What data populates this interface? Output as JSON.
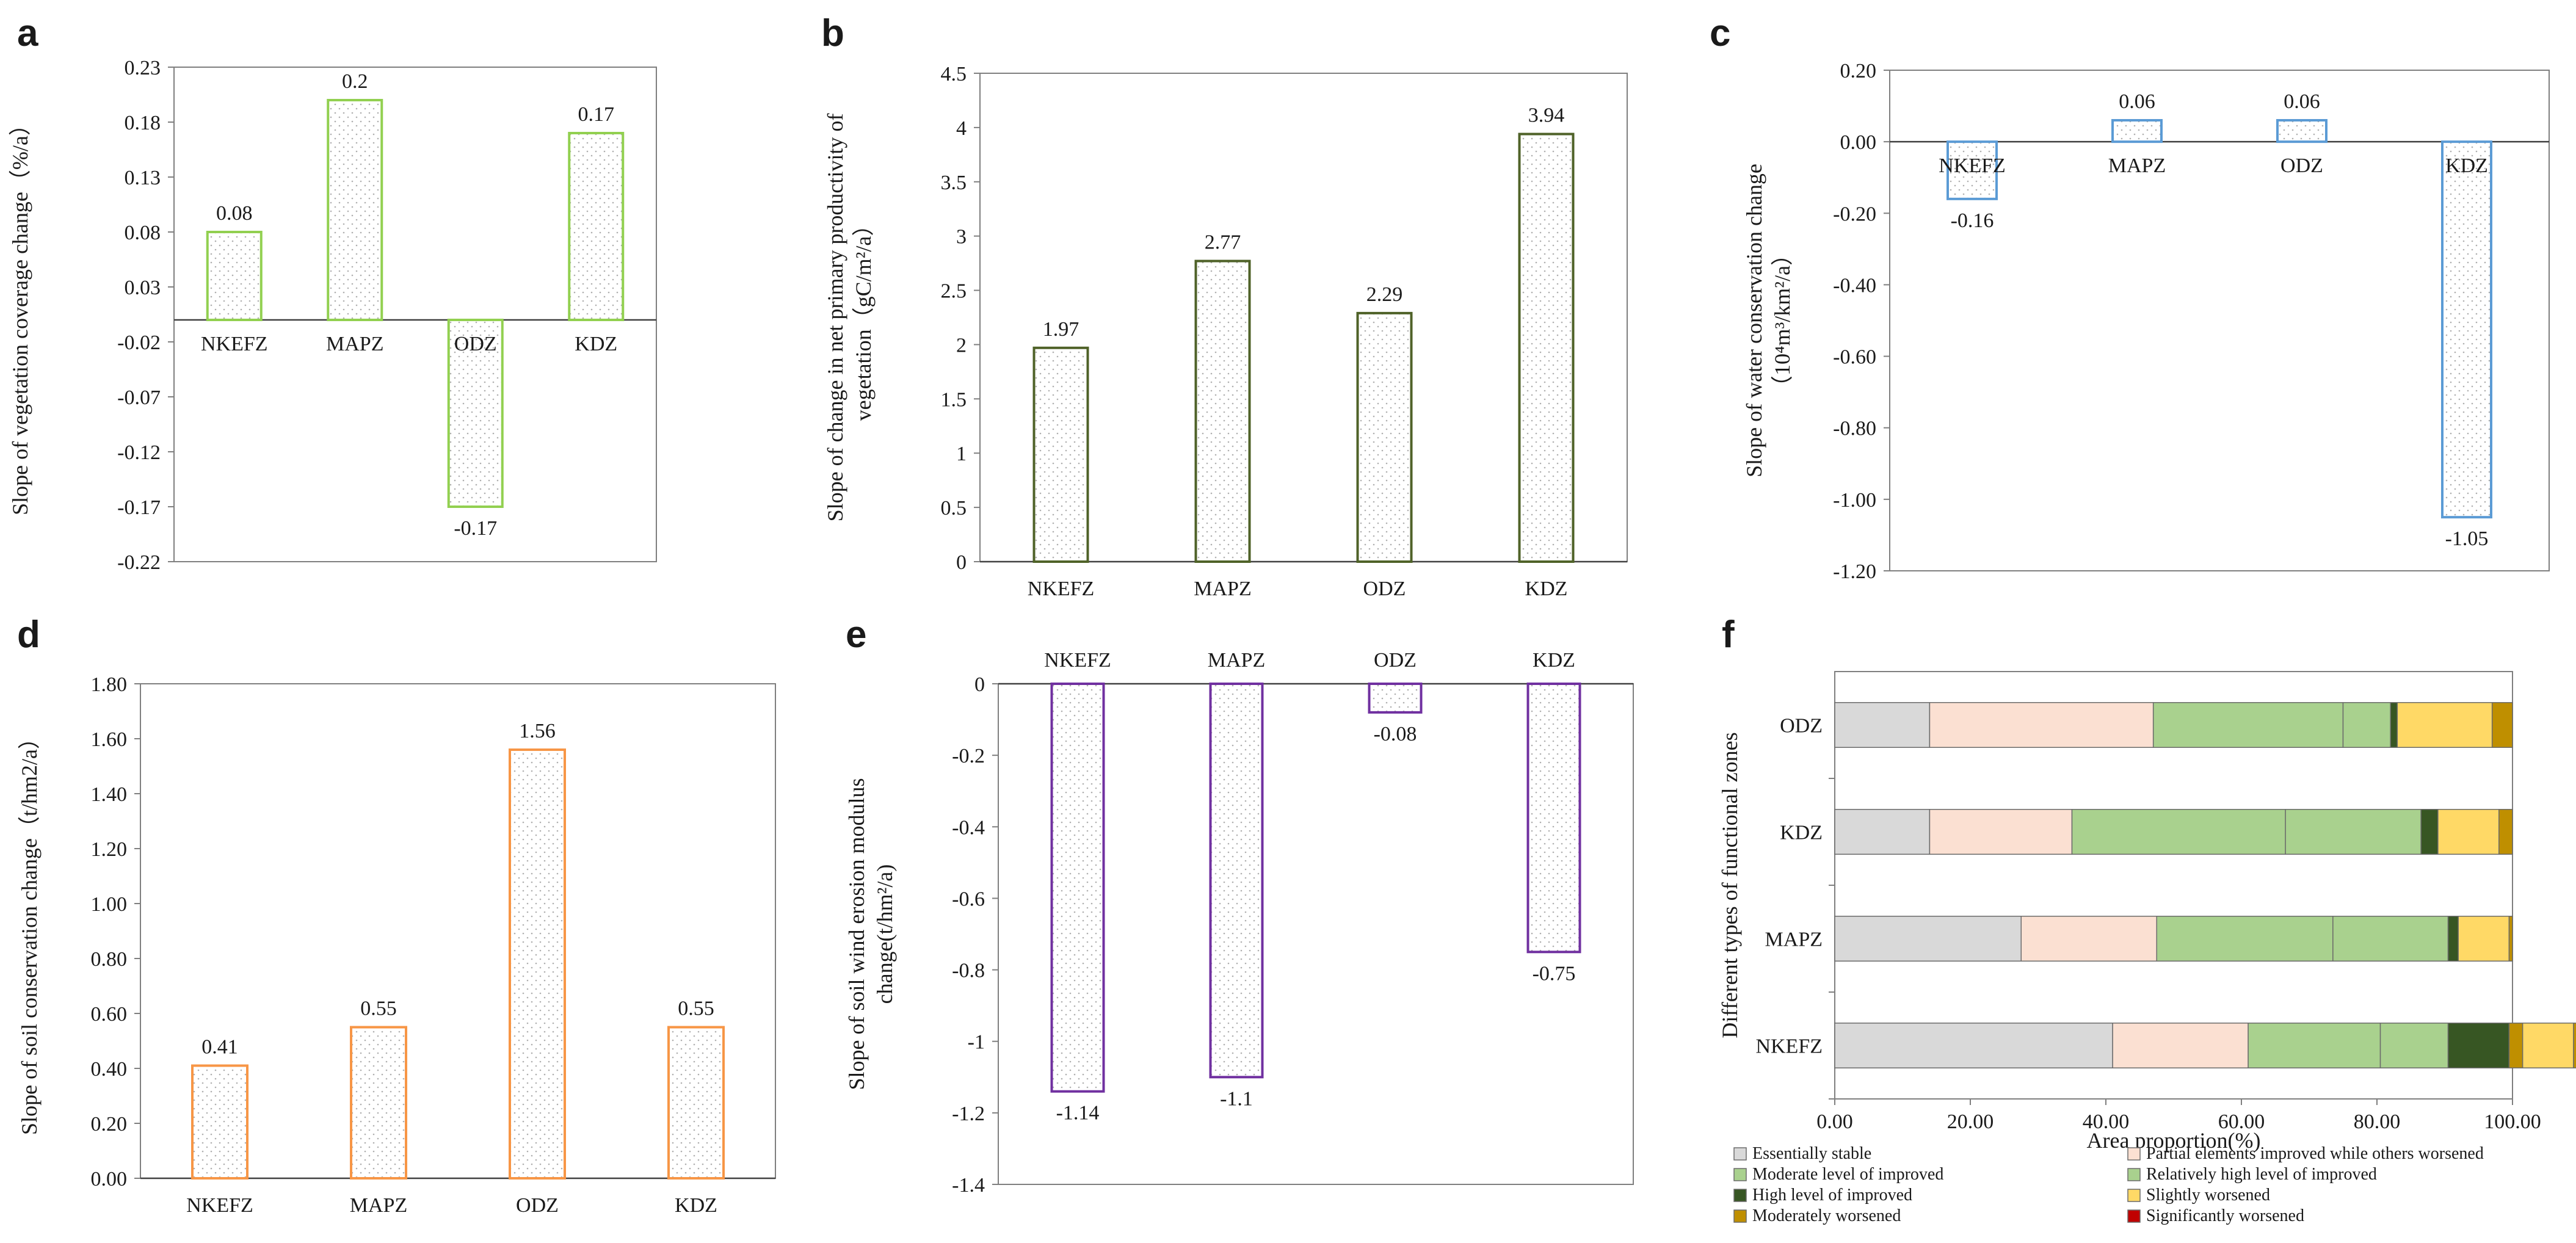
{
  "chart_data": [
    {
      "panel": "a",
      "type": "bar",
      "title": "",
      "ylabel": "Slope of vegetation coverage change（%/a）",
      "xlabel": "",
      "categories": [
        "NKEFZ",
        "MAPZ",
        "ODZ",
        "KDZ"
      ],
      "values": [
        0.08,
        0.2,
        -0.17,
        0.17
      ],
      "value_labels": [
        "0.08",
        "0.2",
        "-0.17",
        "0.17"
      ],
      "ylim": [
        -0.22,
        0.23
      ],
      "yticks": [
        0.23,
        0.18,
        0.13,
        0.08,
        0.03,
        -0.02,
        -0.07,
        -0.12,
        -0.17,
        -0.22
      ],
      "ytick_labels": [
        "0.23",
        "0.18",
        "0.13",
        "0.08",
        "0.03",
        "-0.02",
        "-0.07",
        "-0.12",
        "-0.17",
        "-0.22"
      ],
      "category_position": "on-axis",
      "color": "#92d050"
    },
    {
      "panel": "b",
      "type": "bar",
      "title": "",
      "ylabel_lines": [
        "Slope of change in net primary productivity of",
        "vegetation（gC/m²/a）"
      ],
      "xlabel": "",
      "categories": [
        "NKEFZ",
        "MAPZ",
        "ODZ",
        "KDZ"
      ],
      "values": [
        1.97,
        2.77,
        2.29,
        3.94
      ],
      "value_labels": [
        "1.97",
        "2.77",
        "2.29",
        "3.94"
      ],
      "ylim": [
        0,
        4.5
      ],
      "yticks": [
        0,
        0.5,
        1,
        1.5,
        2,
        2.5,
        3,
        3.5,
        4,
        4.5
      ],
      "ytick_labels": [
        "0",
        "0.5",
        "1",
        "1.5",
        "2",
        "2.5",
        "3",
        "3.5",
        "4",
        "4.5"
      ],
      "category_position": "bottom",
      "color": "#4f6228"
    },
    {
      "panel": "c",
      "type": "bar",
      "title": "",
      "ylabel_lines": [
        "Slope of water conservation change",
        "（10⁴m³/km²/a）"
      ],
      "xlabel": "",
      "categories": [
        "NKEFZ",
        "MAPZ",
        "ODZ",
        "KDZ"
      ],
      "values": [
        -0.16,
        0.06,
        0.06,
        -1.05
      ],
      "value_labels": [
        "-0.16",
        "0.06",
        "0.06",
        "-1.05"
      ],
      "ylim": [
        -1.2,
        0.2
      ],
      "yticks": [
        0.2,
        0.0,
        -0.2,
        -0.4,
        -0.6,
        -0.8,
        -1.0,
        -1.2
      ],
      "ytick_labels": [
        "0.20",
        "0.00",
        "-0.20",
        "-0.40",
        "-0.60",
        "-0.80",
        "-1.00",
        "-1.20"
      ],
      "category_position": "on-axis",
      "color": "#5b9bd5"
    },
    {
      "panel": "d",
      "type": "bar",
      "title": "",
      "ylabel": "Slope of soil conservation change（t/hm2/a）",
      "xlabel": "",
      "categories": [
        "NKEFZ",
        "MAPZ",
        "ODZ",
        "KDZ"
      ],
      "values": [
        0.41,
        0.55,
        1.56,
        0.55
      ],
      "value_labels": [
        "0.41",
        "0.55",
        "1.56",
        "0.55"
      ],
      "ylim": [
        0,
        1.8
      ],
      "yticks": [
        0,
        0.2,
        0.4,
        0.6,
        0.8,
        1.0,
        1.2,
        1.4,
        1.6,
        1.8
      ],
      "ytick_labels": [
        "0.00",
        "0.20",
        "0.40",
        "0.60",
        "0.80",
        "1.00",
        "1.20",
        "1.40",
        "1.60",
        "1.80"
      ],
      "category_position": "bottom",
      "color": "#f79646"
    },
    {
      "panel": "e",
      "type": "bar",
      "title": "",
      "ylabel_lines": [
        "Slope of soil wind erosion modulus",
        "change(t/hm²/a)"
      ],
      "xlabel": "",
      "categories": [
        "NKEFZ",
        "MAPZ",
        "ODZ",
        "KDZ"
      ],
      "values": [
        -1.14,
        -1.1,
        -0.08,
        -0.75
      ],
      "value_labels": [
        "-1.14",
        "-1.1",
        "-0.08",
        "-0.75"
      ],
      "ylim": [
        -1.4,
        0
      ],
      "yticks": [
        0,
        -0.2,
        -0.4,
        -0.6,
        -0.8,
        -1.0,
        -1.2,
        -1.4
      ],
      "ytick_labels": [
        "0",
        "-0.2",
        "-0.4",
        "-0.6",
        "-0.8",
        "-1",
        "-1.2",
        "-1.4"
      ],
      "category_position": "top",
      "color": "#7030a0"
    },
    {
      "panel": "f",
      "type": "bar",
      "orientation": "horizontal-stacked",
      "title": "",
      "ylabel": "Different types of functional zones",
      "xlabel": "Area proportion(%)",
      "categories": [
        "ODZ",
        "KDZ",
        "MAPZ",
        "NKEFZ"
      ],
      "xlim": [
        0,
        100
      ],
      "xticks": [
        0,
        20,
        40,
        60,
        80,
        100
      ],
      "xtick_labels": [
        "0.00",
        "20.00",
        "40.00",
        "60.00",
        "80.00",
        "100.00"
      ],
      "series": [
        {
          "name": "Essentially stable",
          "color": "#d9d9d9",
          "values": [
            14.0,
            14.0,
            27.5,
            41.0
          ]
        },
        {
          "name": "Partial elements improved while others worsened",
          "color": "#fbe0d2",
          "values": [
            33.0,
            21.0,
            20.0,
            20.0
          ]
        },
        {
          "name": "Moderate level of improved",
          "color": "#a9d18e",
          "values": [
            28.0,
            31.5,
            26.0,
            19.5
          ]
        },
        {
          "name": "Relatively high level of improved",
          "color": "#a9d18e",
          "values": [
            7.0,
            20.0,
            17.0,
            10.0
          ]
        },
        {
          "name": "High level of improved",
          "color": "#375623",
          "values": [
            1.0,
            2.5,
            1.5,
            9.0
          ]
        },
        {
          "name": "Moderately worsened",
          "color": "#bf8f00",
          "values": [
            0.0,
            0.0,
            0.0,
            2.0
          ]
        },
        {
          "name": "Slightly worsened",
          "color": "#ffd966",
          "values": [
            14.0,
            9.0,
            7.5,
            7.5
          ]
        },
        {
          "name": "Significantly worsened",
          "color": "#c00000",
          "values": [
            0.0,
            0.0,
            0.0,
            0.0
          ]
        },
        {
          "name": "Moderately worsened",
          "color": "#bf8f00",
          "values": [
            3.0,
            2.0,
            0.5,
            1.0
          ]
        }
      ],
      "legend_entries": [
        {
          "name": "Essentially stable",
          "color": "#d9d9d9"
        },
        {
          "name": "Partial elements improved while others worsened",
          "color": "#fbe0d2"
        },
        {
          "name": "Moderate level of improved",
          "color": "#a9d18e"
        },
        {
          "name": "Relatively high level of improved",
          "color": "#a9d18e"
        },
        {
          "name": "High level of improved",
          "color": "#375623"
        },
        {
          "name": "Slightly worsened",
          "color": "#ffd966"
        },
        {
          "name": "Moderately worsened",
          "color": "#bf8f00"
        },
        {
          "name": "Significantly worsened",
          "color": "#c00000"
        }
      ],
      "legend_position": "bottom"
    }
  ]
}
